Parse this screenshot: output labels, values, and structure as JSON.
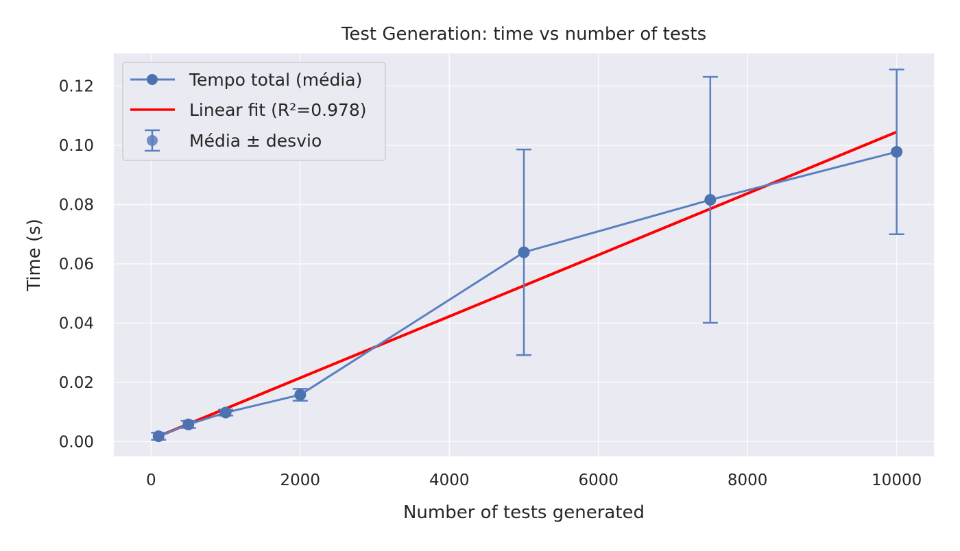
{
  "chart_data": {
    "type": "line",
    "title": "Test Generation: time vs number of tests",
    "xlabel": "Number of tests generated",
    "ylabel": "Time (s)",
    "xlim": [
      -500,
      10500
    ],
    "ylim": [
      -0.005,
      0.131
    ],
    "x_ticks": [
      0,
      2000,
      4000,
      6000,
      8000,
      10000
    ],
    "x_tick_labels": [
      "0",
      "2000",
      "4000",
      "6000",
      "8000",
      "10000"
    ],
    "y_ticks": [
      0.0,
      0.02,
      0.04,
      0.06,
      0.08,
      0.1,
      0.12
    ],
    "y_tick_labels": [
      "0.00",
      "0.02",
      "0.04",
      "0.06",
      "0.08",
      "0.10",
      "0.12"
    ],
    "grid": true,
    "legend_position": "top-left",
    "series": [
      {
        "name": "Tempo total (média)",
        "kind": "line-marker",
        "color": "#5a7fbf",
        "x": [
          100,
          500,
          1000,
          2000,
          5000,
          7500,
          10000
        ],
        "y": [
          0.0018,
          0.0058,
          0.0098,
          0.0158,
          0.0639,
          0.0816,
          0.0978
        ]
      },
      {
        "name": "Linear fit (R²=0.978)",
        "kind": "line",
        "color": "#ff0000",
        "x": [
          100,
          10000
        ],
        "y": [
          0.0018,
          0.1045
        ]
      },
      {
        "name": "Média ± desvio",
        "kind": "errorbar",
        "color": "#5a7fbf",
        "x": [
          100,
          500,
          1000,
          2000,
          5000,
          7500,
          10000
        ],
        "y": [
          0.0018,
          0.0058,
          0.0098,
          0.0158,
          0.0639,
          0.0816,
          0.0978
        ],
        "err": [
          0.0012,
          0.0012,
          0.001,
          0.002,
          0.0347,
          0.0415,
          0.0278
        ]
      }
    ]
  }
}
